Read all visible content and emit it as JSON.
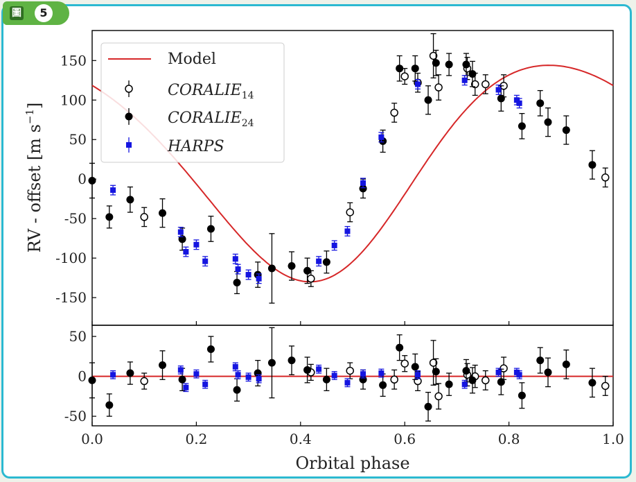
{
  "badge": {
    "label": "圖",
    "number": "5"
  },
  "colors": {
    "frame": "#2bb9d1",
    "badge": "#5fb344",
    "model": "#d62728",
    "harps": "#1515e0",
    "coralie": "#000000"
  },
  "legend": [
    {
      "name": "Model",
      "style": "line",
      "italic": false
    },
    {
      "name": "CORALIE",
      "sub": "14",
      "style": "open",
      "italic": true
    },
    {
      "name": "CORALIE",
      "sub": "24",
      "style": "filled",
      "italic": true
    },
    {
      "name": "HARPS",
      "sub": "",
      "style": "square",
      "italic": true
    }
  ],
  "chart_data": {
    "type": "scatter",
    "xlabel": "Orbital phase",
    "ylabel": "RV - offset [m s",
    "ylabel_sup": "−1",
    "ylabel_close": "]",
    "xlim": [
      0.0,
      1.0
    ],
    "xticks": [
      "0.0",
      "0.2",
      "0.4",
      "0.6",
      "0.8",
      "1.0"
    ],
    "top": {
      "ylim": [
        -185,
        188
      ],
      "yticks": [
        "150",
        "100",
        "50",
        "0",
        "-50",
        "-100",
        "-150"
      ],
      "ytick_values": [
        150,
        100,
        50,
        0,
        -50,
        -100,
        -150
      ]
    },
    "bottom": {
      "ylim": [
        -62,
        64
      ],
      "yticks": [
        "50",
        "0",
        "-50"
      ],
      "ytick_values": [
        50,
        0,
        -50
      ]
    },
    "model": {
      "semi_amplitude": 137,
      "phase_center": 0.5,
      "eccentricity_shape": 0.22
    },
    "series": [
      {
        "name": "CORALIE14",
        "marker": "open",
        "x": [
          0.1,
          0.42,
          0.495,
          0.58,
          0.6,
          0.625,
          0.655,
          0.665,
          0.72,
          0.735,
          0.755,
          0.79,
          0.985
        ],
        "y": [
          -48,
          -126,
          -42,
          84,
          130,
          122,
          156,
          116,
          140,
          120,
          120,
          118,
          2
        ],
        "err": [
          12,
          10,
          12,
          12,
          10,
          12,
          28,
          16,
          14,
          14,
          12,
          14,
          12
        ],
        "res": [
          -6,
          5,
          7,
          -4,
          16,
          -6,
          17,
          -25,
          2,
          0,
          -5,
          10,
          -12
        ],
        "res_err": [
          10,
          10,
          10,
          12,
          10,
          12,
          28,
          16,
          14,
          14,
          12,
          14,
          12
        ]
      },
      {
        "name": "CORALIE24",
        "marker": "filled",
        "x": [
          0.0,
          0.033,
          0.073,
          0.135,
          0.173,
          0.228,
          0.278,
          0.318,
          0.345,
          0.383,
          0.413,
          0.45,
          0.52,
          0.558,
          0.59,
          0.62,
          0.645,
          0.66,
          0.685,
          0.718,
          0.73,
          0.785,
          0.825,
          0.86,
          0.875,
          0.91,
          0.96
        ],
        "y": [
          -2,
          -48,
          -26,
          -43,
          -76,
          -63,
          -131,
          -121,
          -113,
          -110,
          -116,
          -105,
          -12,
          48,
          140,
          140,
          100,
          147,
          145,
          145,
          133,
          102,
          67,
          96,
          72,
          62,
          18
        ],
        "err": [
          22,
          14,
          16,
          18,
          14,
          16,
          14,
          16,
          44,
          18,
          16,
          14,
          12,
          14,
          16,
          16,
          18,
          16,
          14,
          14,
          16,
          16,
          16,
          16,
          18,
          18,
          18
        ],
        "res": [
          -5,
          -36,
          4,
          14,
          -4,
          34,
          -17,
          4,
          17,
          20,
          8,
          -4,
          -4,
          -11,
          36,
          12,
          -38,
          6,
          -10,
          7,
          -5,
          -7,
          -24,
          20,
          5,
          15,
          -8
        ],
        "res_err": [
          22,
          14,
          14,
          18,
          14,
          16,
          14,
          16,
          44,
          18,
          16,
          14,
          12,
          14,
          16,
          16,
          18,
          16,
          14,
          14,
          16,
          16,
          16,
          16,
          18,
          18,
          18
        ]
      },
      {
        "name": "HARPS",
        "marker": "square",
        "x": [
          0.04,
          0.17,
          0.18,
          0.2,
          0.217,
          0.275,
          0.28,
          0.3,
          0.32,
          0.435,
          0.465,
          0.49,
          0.52,
          0.555,
          0.625,
          0.715,
          0.78,
          0.815,
          0.82
        ],
        "y": [
          -14,
          -67,
          -92,
          -83,
          -104,
          -101,
          -114,
          -121,
          -126,
          -104,
          -84,
          -66,
          -5,
          53,
          120,
          125,
          113,
          100,
          96
        ],
        "err": [
          6,
          6,
          6,
          6,
          6,
          6,
          6,
          6,
          6,
          6,
          6,
          6,
          6,
          6,
          6,
          6,
          6,
          6,
          6
        ],
        "res": [
          2,
          8,
          -14,
          3,
          -10,
          12,
          2,
          -1,
          -3,
          9,
          1,
          -8,
          3,
          4,
          2,
          -10,
          5,
          5,
          2
        ],
        "res_err": [
          5,
          5,
          5,
          5,
          5,
          5,
          5,
          5,
          5,
          5,
          5,
          5,
          5,
          5,
          5,
          5,
          5,
          5,
          5
        ]
      }
    ]
  }
}
